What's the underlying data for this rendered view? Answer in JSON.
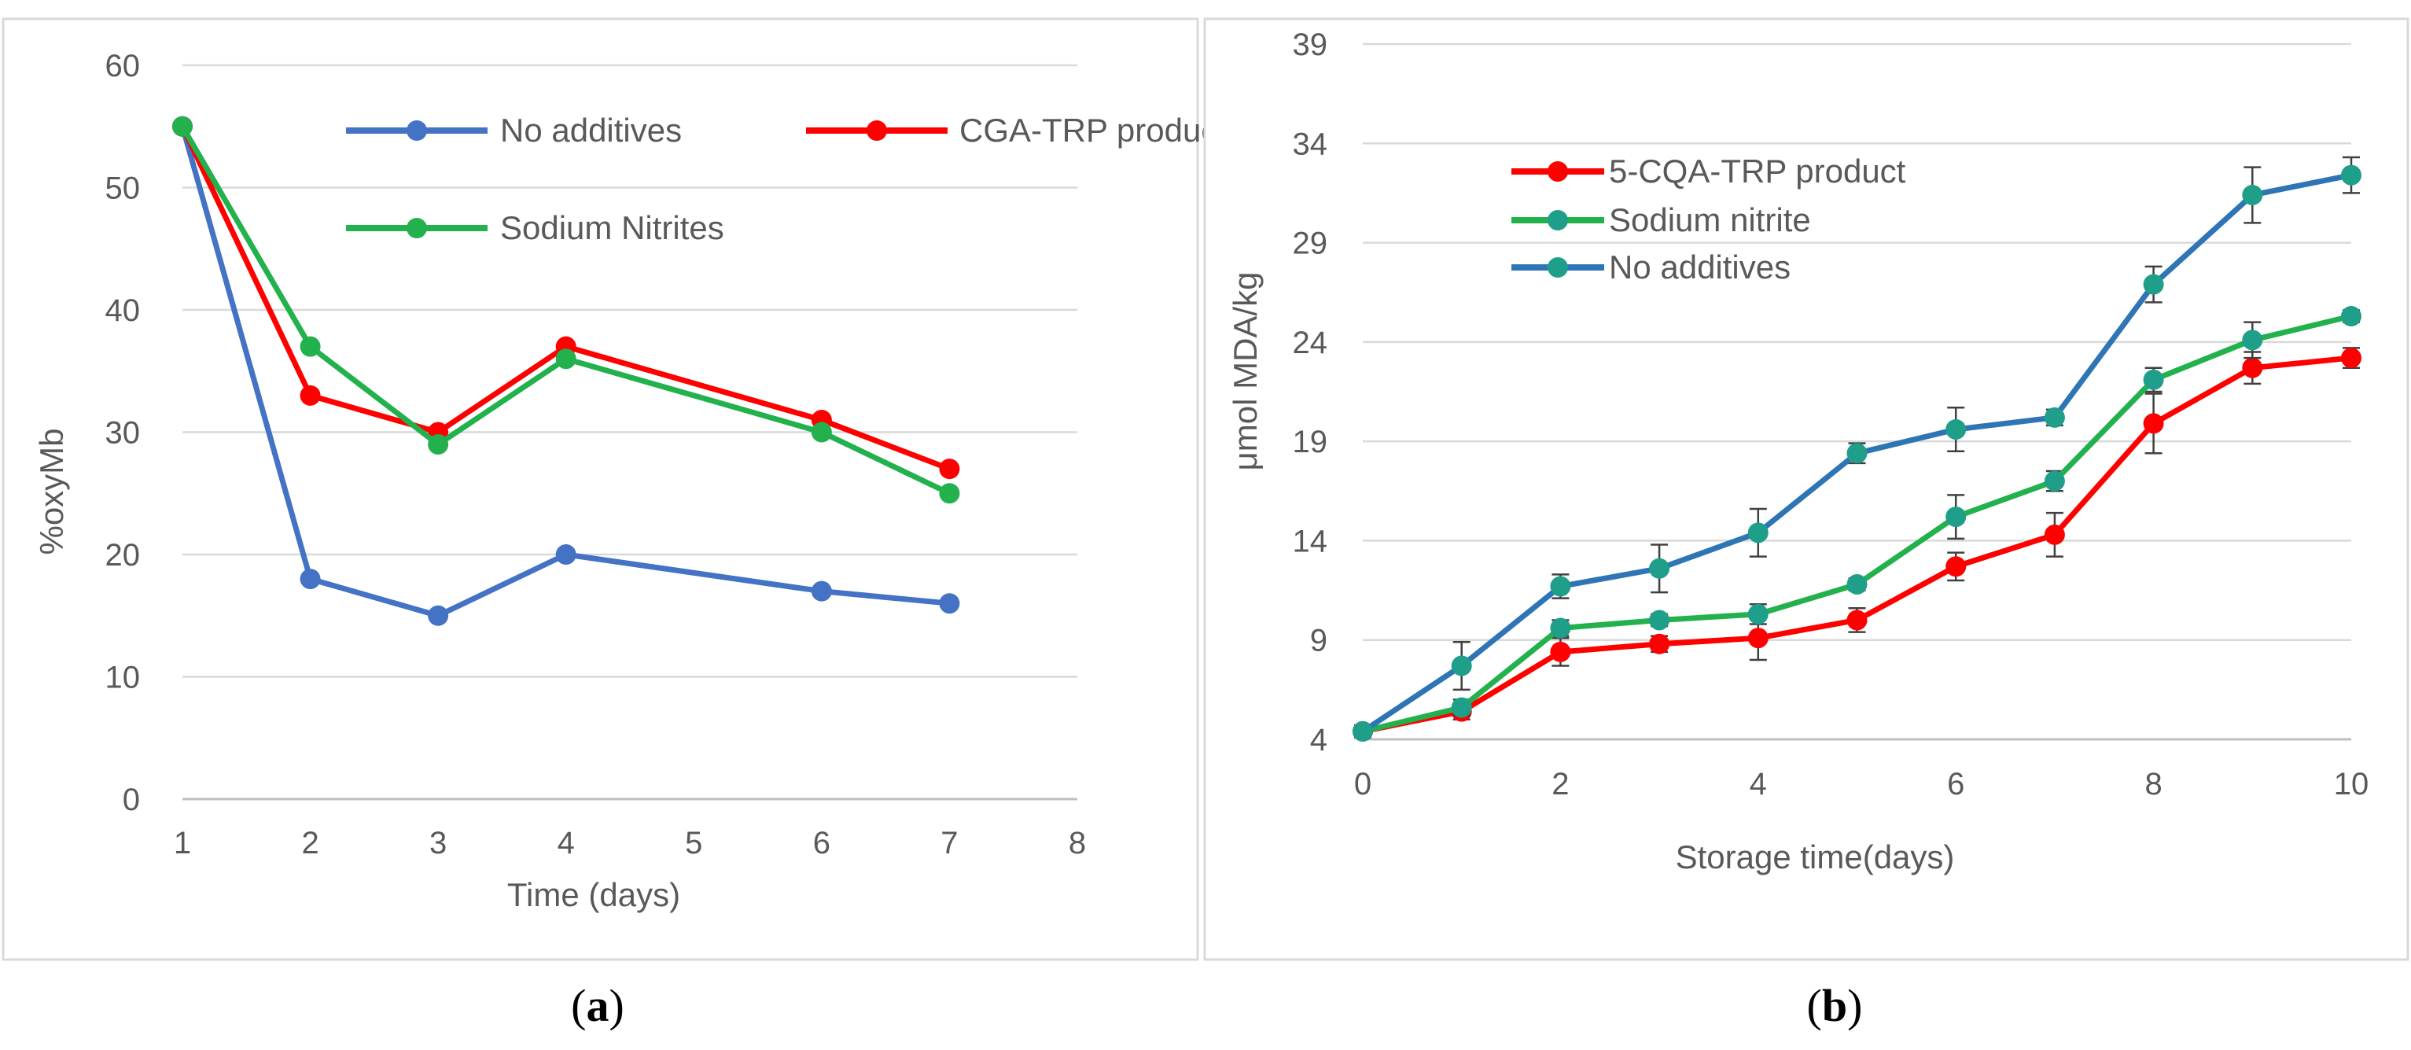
{
  "chart_data": [
    {
      "type": "line",
      "panel_label": "a",
      "title": "",
      "xlabel": "Time (days)",
      "ylabel": "%oxyMb",
      "xlim": [
        1,
        8
      ],
      "ylim": [
        0,
        60
      ],
      "xticks": [
        "1",
        "2",
        "3",
        "4",
        "5",
        "6",
        "7",
        "8"
      ],
      "yticks": [
        "0",
        "10",
        "20",
        "30",
        "40",
        "50",
        "60"
      ],
      "grid": "horizontal",
      "legend_placement": "top",
      "x": [
        1,
        2,
        3,
        4,
        6,
        7
      ],
      "series": [
        {
          "name": "No additives",
          "color": "#4472C4",
          "values": [
            55,
            18,
            15,
            20,
            17,
            16
          ]
        },
        {
          "name": "CGA-TRP product",
          "color": "#FF0000",
          "values": [
            55,
            33,
            30,
            37,
            31,
            27
          ]
        },
        {
          "name": "Sodium Nitrites",
          "color": "#22B14C",
          "values": [
            55,
            37,
            29,
            36,
            30,
            25
          ]
        }
      ]
    },
    {
      "type": "line",
      "panel_label": "b",
      "title": "",
      "xlabel": "Storage time(days)",
      "ylabel": "μmol MDA/kg",
      "xlim": [
        0,
        10
      ],
      "ylim": [
        4,
        39
      ],
      "xticks": [
        "0",
        "2",
        "4",
        "6",
        "8",
        "10"
      ],
      "yticks": [
        "4",
        "9",
        "14",
        "19",
        "24",
        "29",
        "34",
        "39"
      ],
      "grid": "horizontal",
      "legend_placement": "top-left",
      "x": [
        0,
        1,
        2,
        3,
        4,
        5,
        6,
        7,
        8,
        9,
        10
      ],
      "series": [
        {
          "name": "5-CQA-TRP product",
          "color": "#FF0000",
          "marker_color": "#FF0000",
          "values": [
            4.4,
            5.4,
            8.4,
            8.8,
            9.1,
            10.0,
            12.7,
            14.3,
            19.9,
            22.7,
            23.2
          ],
          "errors": [
            0.3,
            0.4,
            0.7,
            0.4,
            1.1,
            0.6,
            0.7,
            1.1,
            1.5,
            0.8,
            0.5
          ]
        },
        {
          "name": "Sodium nitrite",
          "color": "#22B14C",
          "marker_color": "#1F9E8A",
          "values": [
            4.4,
            5.6,
            9.6,
            10.0,
            10.3,
            11.8,
            15.2,
            17.0,
            22.1,
            24.1,
            25.3
          ],
          "errors": [
            0.3,
            0.4,
            0.4,
            0.3,
            0.5,
            0.3,
            1.1,
            0.5,
            0.6,
            0.9,
            0.3
          ]
        },
        {
          "name": "No additives",
          "color": "#2E75B6",
          "marker_color": "#1F9E8A",
          "values": [
            4.4,
            7.7,
            11.7,
            12.6,
            14.4,
            18.4,
            19.6,
            20.2,
            26.9,
            31.4,
            32.4
          ],
          "errors": [
            0.3,
            1.2,
            0.6,
            1.2,
            1.2,
            0.5,
            1.1,
            0.4,
            0.9,
            1.4,
            0.9
          ]
        }
      ]
    }
  ]
}
